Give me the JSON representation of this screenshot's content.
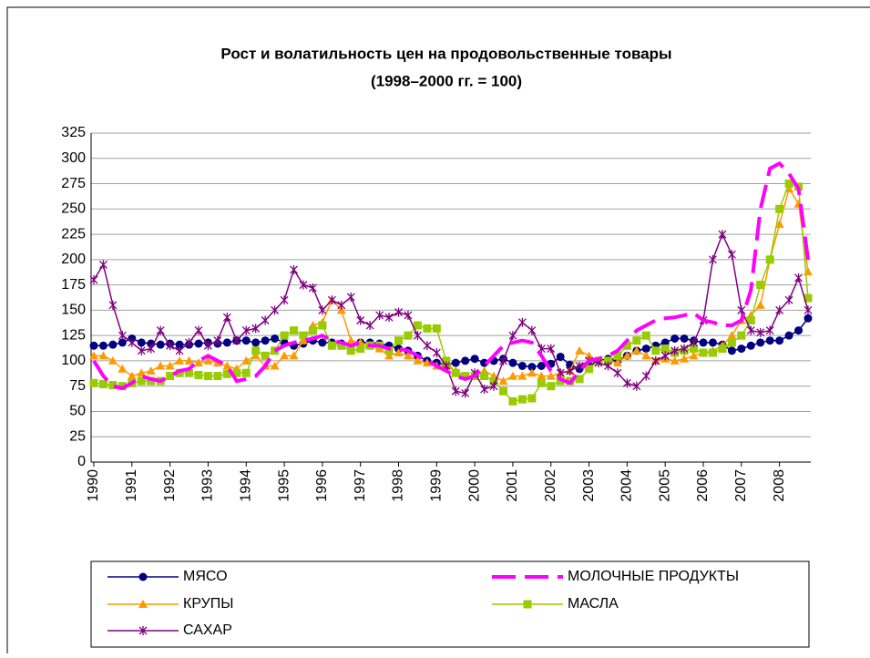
{
  "chart_data": {
    "type": "line",
    "title": "Рост и волатильность цен на продовольственные товары",
    "subtitle": "(1998–2000 гг. = 100)",
    "categories": [
      "1990",
      null,
      null,
      null,
      "1991",
      null,
      null,
      null,
      "1992",
      null,
      null,
      null,
      "1993",
      null,
      null,
      null,
      "1994",
      null,
      null,
      null,
      "1995",
      null,
      null,
      null,
      "1996",
      null,
      null,
      null,
      "1997",
      null,
      null,
      null,
      "1998",
      null,
      null,
      null,
      "1999",
      null,
      null,
      null,
      "2000",
      null,
      null,
      null,
      "2001",
      null,
      null,
      null,
      "2002",
      null,
      null,
      null,
      "2003",
      null,
      null,
      null,
      "2004",
      null,
      null,
      null,
      "2005",
      null,
      null,
      null,
      "2006",
      null,
      null,
      null,
      "2007",
      null,
      null,
      null,
      "2008",
      null,
      null,
      null
    ],
    "ylim": [
      0,
      325
    ],
    "yticks": [
      0,
      25,
      50,
      75,
      100,
      125,
      150,
      175,
      200,
      225,
      250,
      275,
      300,
      325
    ],
    "grid": true,
    "series": [
      {
        "name": "МЯСО",
        "color": "#000080",
        "marker": "circle",
        "dash": false,
        "values": [
          115,
          115,
          116,
          118,
          122,
          118,
          117,
          116,
          117,
          116,
          116,
          117,
          118,
          117,
          118,
          120,
          120,
          118,
          120,
          122,
          118,
          115,
          117,
          120,
          118,
          118,
          117,
          116,
          118,
          118,
          117,
          115,
          112,
          110,
          105,
          100,
          98,
          96,
          98,
          100,
          102,
          98,
          100,
          102,
          98,
          95,
          94,
          95,
          97,
          104,
          96,
          92,
          95,
          100,
          102,
          100,
          105,
          110,
          112,
          115,
          118,
          122,
          122,
          120,
          118,
          118,
          116,
          110,
          112,
          115,
          118,
          120,
          120,
          125,
          130,
          142
        ]
      },
      {
        "name": "МОЛОЧНЫЕ ПРОДУКТЫ",
        "color": "#ff00ff",
        "marker": "none",
        "dash": true,
        "values": [
          100,
          85,
          75,
          73,
          78,
          85,
          82,
          80,
          85,
          90,
          92,
          100,
          105,
          100,
          95,
          80,
          82,
          85,
          95,
          110,
          115,
          118,
          120,
          122,
          125,
          120,
          118,
          115,
          118,
          115,
          115,
          112,
          112,
          110,
          105,
          100,
          95,
          90,
          85,
          82,
          85,
          95,
          105,
          115,
          118,
          120,
          118,
          105,
          90,
          82,
          78,
          90,
          100,
          102,
          105,
          110,
          120,
          130,
          135,
          140,
          142,
          143,
          145,
          147,
          140,
          138,
          135,
          135,
          140,
          170,
          250,
          290,
          295,
          285,
          270,
          200
        ]
      },
      {
        "name": "КРУПЫ",
        "color": "#ff9900",
        "marker": "triangle",
        "dash": false,
        "values": [
          105,
          105,
          100,
          92,
          85,
          88,
          90,
          95,
          95,
          100,
          100,
          98,
          100,
          98,
          95,
          92,
          100,
          105,
          95,
          95,
          105,
          105,
          120,
          135,
          138,
          160,
          150,
          120,
          118,
          115,
          112,
          105,
          108,
          105,
          100,
          98,
          95,
          95,
          90,
          85,
          85,
          90,
          85,
          80,
          85,
          85,
          88,
          85,
          85,
          88,
          90,
          110,
          105,
          100,
          100,
          98,
          105,
          110,
          105,
          100,
          102,
          100,
          102,
          105,
          108,
          110,
          115,
          125,
          140,
          145,
          155,
          200,
          235,
          270,
          255,
          188
        ]
      },
      {
        "name": "МАСЛА",
        "color": "#99cc00",
        "marker": "square",
        "dash": false,
        "values": [
          78,
          77,
          76,
          75,
          78,
          80,
          80,
          80,
          85,
          88,
          88,
          86,
          85,
          85,
          87,
          88,
          88,
          110,
          105,
          110,
          125,
          130,
          125,
          130,
          135,
          115,
          115,
          110,
          112,
          115,
          115,
          110,
          120,
          125,
          135,
          132,
          132,
          100,
          88,
          85,
          85,
          85,
          80,
          70,
          60,
          62,
          63,
          78,
          75,
          80,
          80,
          82,
          92,
          100,
          100,
          105,
          115,
          120,
          125,
          110,
          112,
          108,
          110,
          112,
          108,
          108,
          112,
          118,
          125,
          140,
          175,
          200,
          250,
          275,
          272,
          162
        ]
      },
      {
        "name": "САХАР",
        "color": "#800080",
        "marker": "star",
        "dash": false,
        "values": [
          180,
          195,
          155,
          125,
          118,
          110,
          112,
          130,
          115,
          110,
          118,
          130,
          115,
          120,
          143,
          120,
          130,
          132,
          140,
          150,
          160,
          190,
          175,
          172,
          150,
          160,
          155,
          163,
          140,
          135,
          145,
          143,
          148,
          145,
          125,
          115,
          108,
          95,
          70,
          68,
          88,
          72,
          75,
          100,
          125,
          138,
          130,
          112,
          112,
          88,
          90,
          95,
          100,
          98,
          95,
          88,
          78,
          75,
          85,
          100,
          105,
          110,
          112,
          118,
          140,
          200,
          225,
          205,
          150,
          130,
          128,
          130,
          150,
          160,
          182,
          150
        ]
      }
    ]
  }
}
